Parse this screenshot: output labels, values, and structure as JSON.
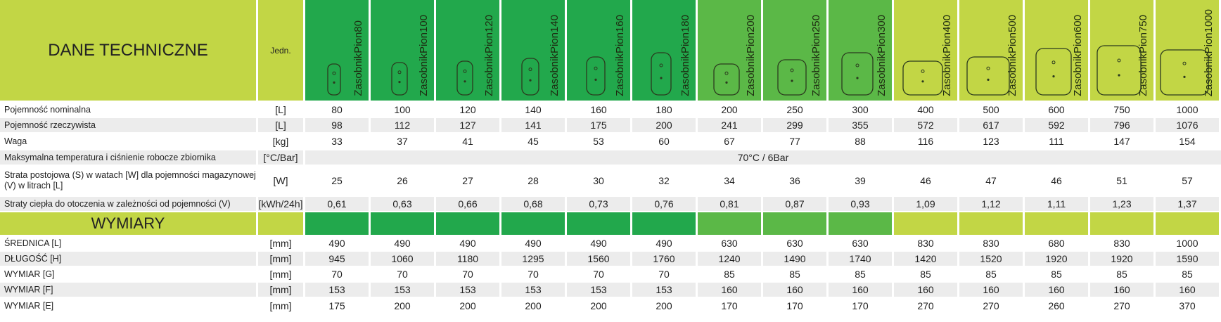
{
  "header": {
    "title": "DANE TECHNICZNE",
    "unit": "Jedn.",
    "models": [
      "ZasobnikPion80",
      "ZasobnikPion100",
      "ZasobnikPion120",
      "ZasobnikPion140",
      "ZasobnikPion160",
      "ZasobnikPion180",
      "ZasobnikPion200",
      "ZasobnikPion250",
      "ZasobnikPion300",
      "ZasobnikPion400",
      "ZasobnikPion500",
      "ZasobnikPion600",
      "ZasobnikPion750",
      "ZasobnikPion1000"
    ]
  },
  "rows": [
    {
      "label": "Pojemność nominalna",
      "unit": "[L]",
      "values": [
        80,
        100,
        120,
        140,
        160,
        180,
        200,
        250,
        300,
        400,
        500,
        600,
        750,
        1000
      ]
    },
    {
      "label": "Pojemność rzeczywista",
      "unit": "[L]",
      "values": [
        98,
        112,
        127,
        141,
        175,
        200,
        241,
        299,
        355,
        572,
        617,
        592,
        796,
        1076
      ]
    },
    {
      "label": "Waga",
      "unit": "[kg]",
      "values": [
        33,
        37,
        41,
        45,
        53,
        60,
        67,
        77,
        88,
        116,
        123,
        111,
        147,
        154
      ]
    },
    {
      "label": "Maksymalna temperatura i ciśnienie robocze zbiornika",
      "unit": "[°C/Bar]",
      "merged": "70°C / 6Bar"
    },
    {
      "label": "Strata postojowa (S) w watach [W] dla pojemności magazynowej (V) w litrach [L]",
      "unit": "[W]",
      "values": [
        25,
        26,
        27,
        28,
        30,
        32,
        34,
        36,
        39,
        46,
        47,
        46,
        51,
        57
      ]
    },
    {
      "label": "Straty ciepła do otoczenia w zależności od pojemności (V)",
      "unit": "[kWh/24h]",
      "values": [
        "0,61",
        "0,63",
        "0,66",
        "0,68",
        "0,73",
        "0,76",
        "0,81",
        "0,87",
        "0,93",
        "1,09",
        "1,12",
        "1,11",
        "1,23",
        "1,37"
      ]
    }
  ],
  "section": "WYMIARY",
  "dimensions": [
    {
      "label": "ŚREDNICA [L]",
      "unit": "[mm]",
      "values": [
        490,
        490,
        490,
        490,
        490,
        490,
        630,
        630,
        630,
        830,
        830,
        680,
        830,
        1000
      ]
    },
    {
      "label": "DŁUGOŚĆ [H]",
      "unit": "[mm]",
      "values": [
        945,
        1060,
        1180,
        1295,
        1560,
        1760,
        1240,
        1490,
        1740,
        1420,
        1520,
        1920,
        1920,
        1590
      ]
    },
    {
      "label": "WYMIAR [G]",
      "unit": "[mm]",
      "values": [
        70,
        70,
        70,
        70,
        70,
        70,
        85,
        85,
        85,
        85,
        85,
        85,
        85,
        85
      ]
    },
    {
      "label": "WYMIAR [F]",
      "unit": "[mm]",
      "values": [
        153,
        153,
        153,
        153,
        153,
        153,
        160,
        160,
        160,
        160,
        160,
        160,
        160,
        160
      ]
    },
    {
      "label": "WYMIAR [E]",
      "unit": "[mm]",
      "values": [
        175,
        200,
        200,
        200,
        200,
        200,
        170,
        170,
        170,
        270,
        270,
        260,
        270,
        370
      ]
    }
  ]
}
